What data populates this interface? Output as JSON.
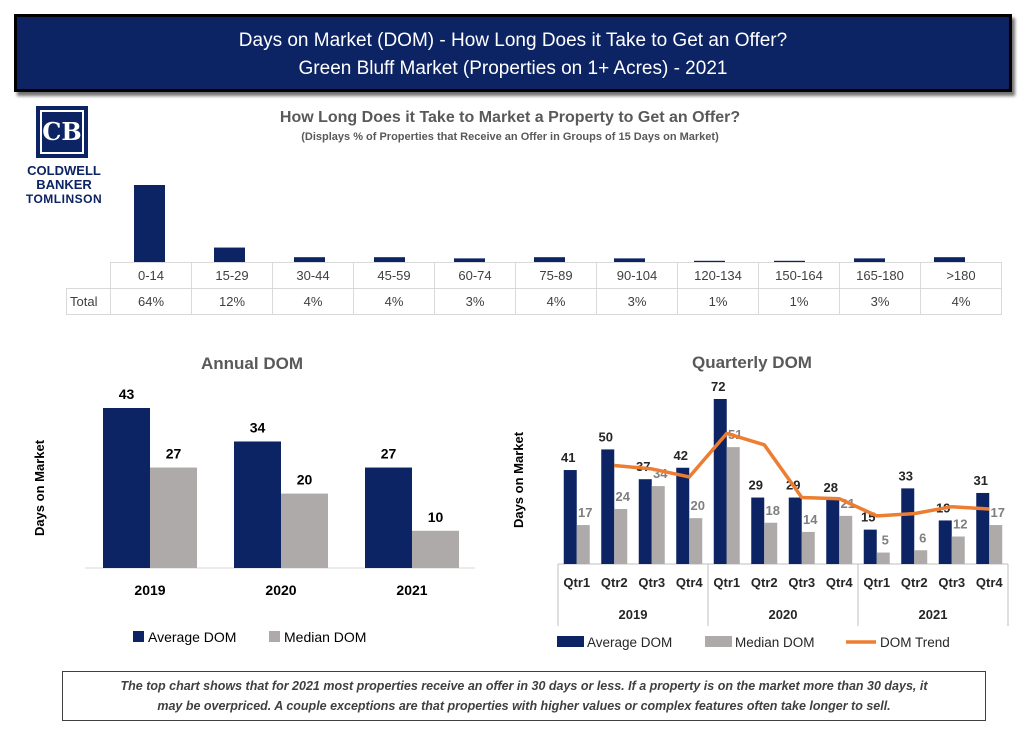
{
  "header": {
    "line1": "Days on Market (DOM) - How Long Does it Take to Get an Offer?",
    "line2": "Green Bluff Market (Properties on 1+ Acres) - 2021"
  },
  "logo": {
    "monogram": "CB",
    "line1": "COLDWELL",
    "line2": "BANKER",
    "line3": "TOMLINSON"
  },
  "colors": {
    "navy": "#0c2364",
    "gray": "#aeaaaa",
    "orange": "#ed7d31"
  },
  "footer": {
    "line1": "The top chart shows that for 2021 most properties receive an offer in 30 days or less. If a property is on the market more than 30 days, it",
    "line2": "may be overpriced. A couple exceptions are that properties with higher values or complex features often take longer to sell."
  },
  "chart_data": [
    {
      "type": "bar",
      "title": "How Long Does it Take to Market a Property to Get an Offer?",
      "subtitle": "(Displays % of Properties that Receive an Offer in Groups of 15 Days on Market)",
      "categories": [
        "0-14",
        "15-29",
        "30-44",
        "45-59",
        "60-74",
        "75-89",
        "90-104",
        "120-134",
        "150-164",
        "165-180",
        ">180"
      ],
      "row_label": "Total",
      "values": [
        64,
        12,
        4,
        4,
        3,
        4,
        3,
        1,
        1,
        3,
        4
      ],
      "value_labels": [
        "64%",
        "12%",
        "4%",
        "4%",
        "3%",
        "4%",
        "3%",
        "1%",
        "1%",
        "3%",
        "4%"
      ],
      "ylim": [
        0,
        64
      ]
    },
    {
      "type": "bar",
      "title": "Annual DOM",
      "ylabel": "Days on Market",
      "categories": [
        "2019",
        "2020",
        "2021"
      ],
      "series": [
        {
          "name": "Average DOM",
          "values": [
            43,
            34,
            27
          ]
        },
        {
          "name": "Median DOM",
          "values": [
            27,
            20,
            10
          ]
        }
      ],
      "ylim": [
        0,
        43
      ]
    },
    {
      "type": "bar",
      "title": "Quarterly DOM",
      "ylabel": "Days on Market",
      "quarters": [
        "Qtr1",
        "Qtr2",
        "Qtr3",
        "Qtr4"
      ],
      "years": [
        "2019",
        "2020",
        "2021"
      ],
      "series": [
        {
          "name": "Average DOM",
          "values": [
            41,
            50,
            37,
            42,
            72,
            29,
            29,
            28,
            15,
            33,
            19,
            31
          ]
        },
        {
          "name": "Median DOM",
          "values": [
            17,
            24,
            34,
            20,
            51,
            18,
            14,
            21,
            5,
            6,
            12,
            17
          ]
        },
        {
          "name": "DOM Trend",
          "type": "line",
          "values": [
            null,
            43,
            41.5,
            38,
            57,
            52,
            29,
            28.5,
            21,
            22,
            25,
            24
          ]
        }
      ],
      "ylim": [
        0,
        72
      ]
    }
  ]
}
